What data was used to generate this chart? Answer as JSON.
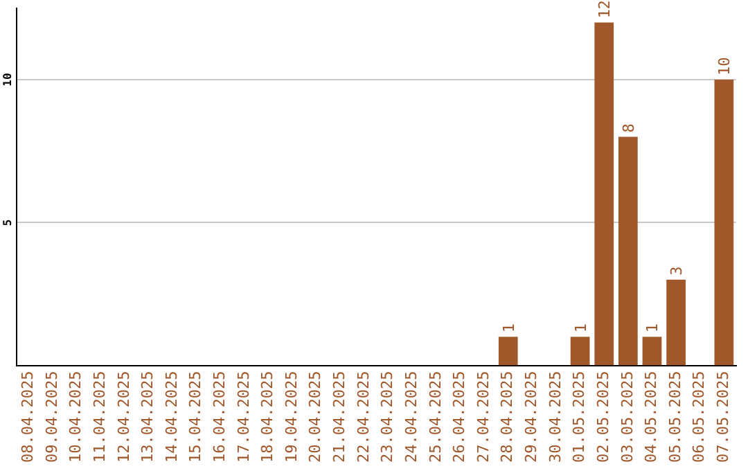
{
  "chart_data": {
    "type": "bar",
    "categories": [
      "08.04.2025",
      "09.04.2025",
      "10.04.2025",
      "11.04.2025",
      "12.04.2025",
      "13.04.2025",
      "14.04.2025",
      "15.04.2025",
      "16.04.2025",
      "17.04.2025",
      "18.04.2025",
      "19.04.2025",
      "20.04.2025",
      "21.04.2025",
      "22.04.2025",
      "23.04.2025",
      "24.04.2025",
      "25.04.2025",
      "26.04.2025",
      "27.04.2025",
      "28.04.2025",
      "29.04.2025",
      "30.04.2025",
      "01.05.2025",
      "02.05.2025",
      "03.05.2025",
      "04.05.2025",
      "05.05.2025",
      "06.05.2025",
      "07.05.2025"
    ],
    "values": [
      0,
      0,
      0,
      0,
      0,
      0,
      0,
      0,
      0,
      0,
      0,
      0,
      0,
      0,
      0,
      0,
      0,
      0,
      0,
      0,
      1,
      0,
      0,
      1,
      12,
      8,
      1,
      3,
      0,
      10
    ],
    "value_labels": [
      null,
      null,
      null,
      null,
      null,
      null,
      null,
      null,
      null,
      null,
      null,
      null,
      null,
      null,
      null,
      null,
      null,
      null,
      null,
      null,
      "1",
      null,
      null,
      "1",
      "12",
      "8",
      "1",
      "3",
      null,
      "10"
    ],
    "color": "#a0572a",
    "ylim": [
      0,
      12.5
    ],
    "yticks": [
      5,
      10
    ],
    "grid": "y",
    "legend": false
  }
}
